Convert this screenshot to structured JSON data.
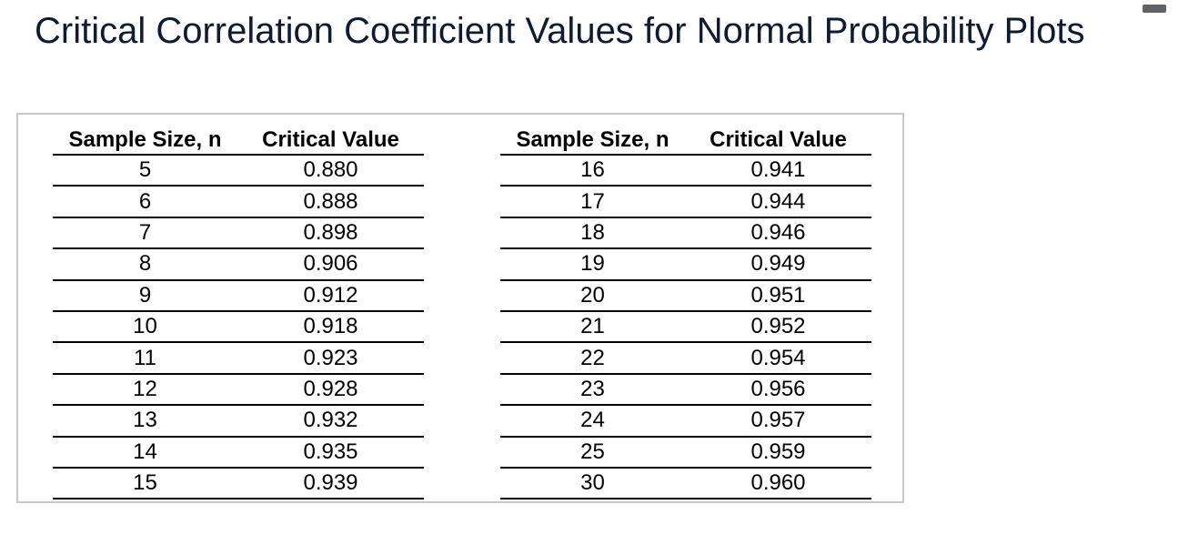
{
  "title": "Critical Correlation Coefficient Values for Normal Probability Plots",
  "colors": {
    "title": "#0f1a33",
    "frame_border": "#c8c8c8",
    "rule": "#000000",
    "control": "#5f6368"
  },
  "icons": {
    "window_control": "minimize-icon"
  },
  "table": {
    "headers": {
      "sample_size": "Sample Size, n",
      "critical_value": "Critical Value"
    },
    "left_rows": [
      {
        "n": "5",
        "value": "0.880"
      },
      {
        "n": "6",
        "value": "0.888"
      },
      {
        "n": "7",
        "value": "0.898"
      },
      {
        "n": "8",
        "value": "0.906"
      },
      {
        "n": "9",
        "value": "0.912"
      },
      {
        "n": "10",
        "value": "0.918"
      },
      {
        "n": "11",
        "value": "0.923"
      },
      {
        "n": "12",
        "value": "0.928"
      },
      {
        "n": "13",
        "value": "0.932"
      },
      {
        "n": "14",
        "value": "0.935"
      },
      {
        "n": "15",
        "value": "0.939"
      }
    ],
    "right_rows": [
      {
        "n": "16",
        "value": "0.941"
      },
      {
        "n": "17",
        "value": "0.944"
      },
      {
        "n": "18",
        "value": "0.946"
      },
      {
        "n": "19",
        "value": "0.949"
      },
      {
        "n": "20",
        "value": "0.951"
      },
      {
        "n": "21",
        "value": "0.952"
      },
      {
        "n": "22",
        "value": "0.954"
      },
      {
        "n": "23",
        "value": "0.956"
      },
      {
        "n": "24",
        "value": "0.957"
      },
      {
        "n": "25",
        "value": "0.959"
      },
      {
        "n": "30",
        "value": "0.960"
      }
    ]
  }
}
